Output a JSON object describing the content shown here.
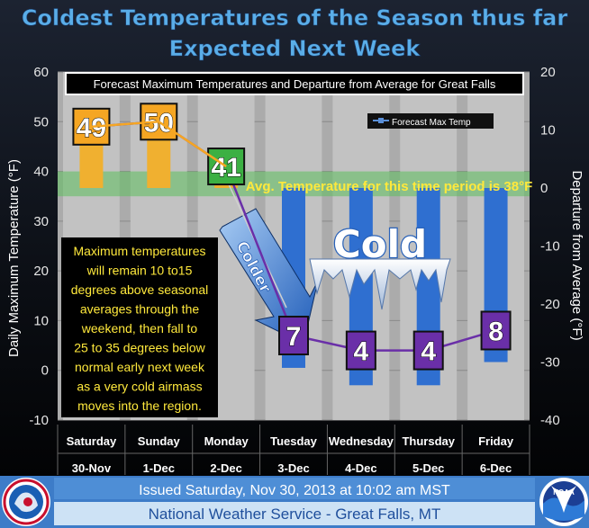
{
  "header": {
    "title_line1": "Coldest Temperatures of the Season thus far",
    "title_line2": "Expected Next Week"
  },
  "chart_data": {
    "type": "line",
    "subtitle": "Forecast Maximum Temperatures and Departure from Average for Great Falls",
    "ylabel": "Daily Maximum Temperature (°F)",
    "y2label": "Departure from Average (°F)",
    "ylim": [
      -10,
      60
    ],
    "y2lim": [
      -40,
      20
    ],
    "yticks": [
      "-10",
      "0",
      "10",
      "20",
      "30",
      "40",
      "50",
      "60"
    ],
    "y2ticks": [
      "-40",
      "-30",
      "-20",
      "-10",
      "0",
      "10",
      "20"
    ],
    "categories": [
      "Saturday",
      "Sunday",
      "Monday",
      "Tuesday",
      "Wednesday",
      "Thursday",
      "Friday"
    ],
    "dates": [
      "30-Nov",
      "1-Dec",
      "2-Dec",
      "3-Dec",
      "4-Dec",
      "5-Dec",
      "6-Dec"
    ],
    "series": [
      {
        "name": "Forecast Max Temp",
        "values": [
          49,
          50,
          41,
          7,
          4,
          4,
          8
        ]
      }
    ],
    "departures": [
      11,
      12,
      3,
      -31,
      -34,
      -34,
      -30
    ],
    "average": 38,
    "average_band": [
      35,
      40
    ],
    "average_label": "Avg. Temperature for this time period is 38°F",
    "grid": true,
    "colors": {
      "warm": "#f5a623",
      "near_normal": "#3cb043",
      "cold": "#6a2fa8",
      "departure_bar": "#2f6fd0",
      "warm_departure_bar": "#f0b030",
      "line_warm": "#f5a623",
      "line_cold": "#6a2fa8",
      "avg_band": "#5cc05c",
      "note_text": "#ffe93c"
    }
  },
  "annotations": {
    "colder": "Colder",
    "cold": "Cold",
    "narrative_lines": [
      "Maximum temperatures",
      "will remain 10 to15",
      "degrees above seasonal",
      "averages through the",
      "weekend, then fall to",
      "25 to 35 degrees below",
      "normal early next week",
      "as a very cold airmass",
      "moves into the region."
    ]
  },
  "footer": {
    "issued": "Issued Saturday, Nov 30, 2013 at 10:02 am MST",
    "office": "National Weather Service - Great Falls, MT"
  }
}
